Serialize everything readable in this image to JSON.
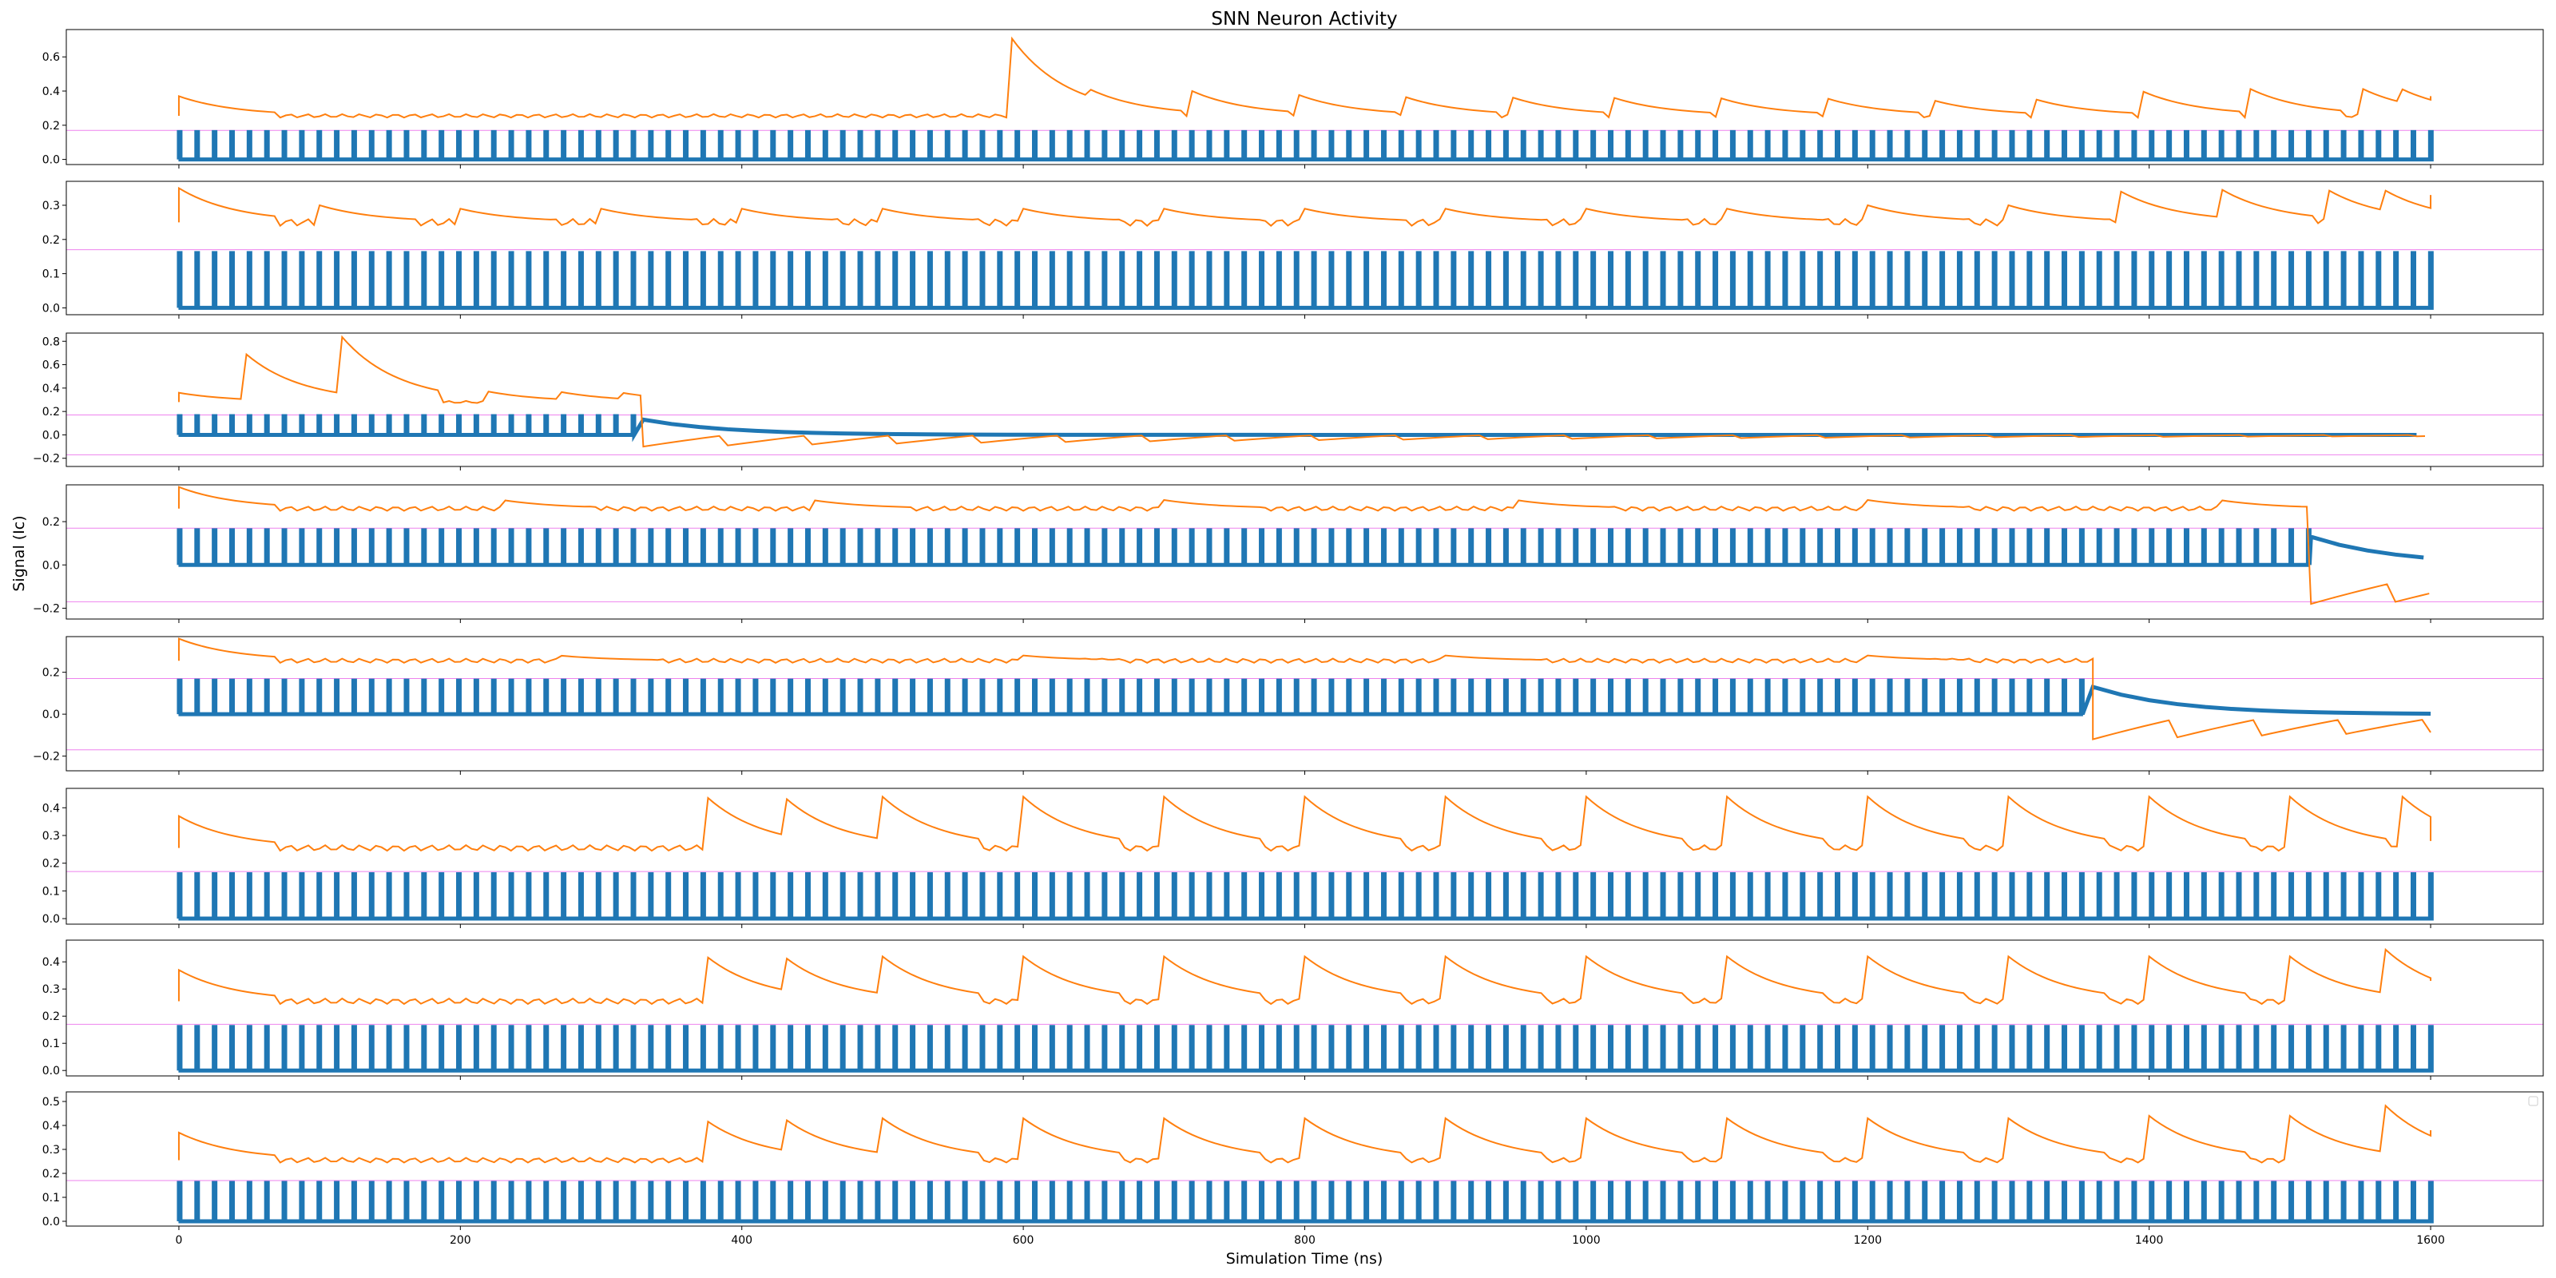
{
  "chart_data": {
    "type": "line",
    "title": "SNN Neuron Activity",
    "xlabel": "Simulation Time (ns)",
    "ylabel": "Signal (Ic)",
    "xlim": [
      -80,
      1680
    ],
    "x_ticks": [
      0,
      200,
      400,
      600,
      800,
      1000,
      1200,
      1400,
      1600
    ],
    "grid": false,
    "legend": "top-right (empty)",
    "colors": {
      "spike": "#1f77b4",
      "membrane": "#ff7f0e",
      "threshold": "#ee82ee",
      "frame": "#000000"
    },
    "spike_period_ns": 12.4,
    "spike_height": 0.16,
    "threshold_abs": 0.17,
    "panels": [
      {
        "ylim": [
          -0.03,
          0.76
        ],
        "y_ticks": [
          0.0,
          0.2,
          0.4,
          0.6
        ],
        "y_tick_labels": [
          "0.0",
          "0.2",
          "0.4",
          "0.6"
        ],
        "threshold_neg": false,
        "spikes_stop_ns": null,
        "membrane_baseline": 0.255,
        "membrane_peaks": [
          [
            0,
            0.37
          ],
          [
            590,
            0.73
          ],
          [
            645,
            0.42
          ],
          [
            720,
            0.4
          ],
          [
            795,
            0.38
          ],
          [
            870,
            0.37
          ],
          [
            945,
            0.37
          ],
          [
            1020,
            0.36
          ],
          [
            1095,
            0.36
          ],
          [
            1170,
            0.36
          ],
          [
            1245,
            0.35
          ],
          [
            1320,
            0.35
          ],
          [
            1395,
            0.4
          ],
          [
            1470,
            0.42
          ],
          [
            1550,
            0.42
          ],
          [
            1580,
            0.41
          ]
        ],
        "membrane_end": 0.37
      },
      {
        "ylim": [
          -0.02,
          0.37
        ],
        "y_ticks": [
          0.0,
          0.1,
          0.2,
          0.3
        ],
        "y_tick_labels": [
          "0.0",
          "0.1",
          "0.2",
          "0.3"
        ],
        "threshold_neg": false,
        "spikes_stop_ns": null,
        "membrane_baseline": 0.25,
        "membrane_peaks": [
          [
            0,
            0.35
          ],
          [
            100,
            0.3
          ],
          [
            200,
            0.29
          ],
          [
            300,
            0.29
          ],
          [
            400,
            0.29
          ],
          [
            500,
            0.29
          ],
          [
            600,
            0.29
          ],
          [
            700,
            0.29
          ],
          [
            800,
            0.29
          ],
          [
            900,
            0.29
          ],
          [
            1000,
            0.29
          ],
          [
            1100,
            0.29
          ],
          [
            1200,
            0.3
          ],
          [
            1300,
            0.3
          ],
          [
            1380,
            0.34
          ],
          [
            1450,
            0.35
          ],
          [
            1525,
            0.35
          ],
          [
            1565,
            0.35
          ]
        ],
        "membrane_end": 0.33
      },
      {
        "ylim": [
          -0.27,
          0.87
        ],
        "y_ticks": [
          -0.2,
          0.0,
          0.2,
          0.4,
          0.6,
          0.8
        ],
        "y_tick_labels": [
          "−0.2",
          "0.0",
          "0.2",
          "0.4",
          "0.6",
          "0.8"
        ],
        "threshold_neg": true,
        "spikes_stop_ns": 330,
        "membrane_baseline": 0.28,
        "membrane_peaks": [
          [
            0,
            0.36
          ],
          [
            45,
            0.72
          ],
          [
            115,
            0.85
          ],
          [
            220,
            0.37
          ],
          [
            270,
            0.37
          ],
          [
            315,
            0.36
          ]
        ],
        "membrane_end": 0.0
      },
      {
        "ylim": [
          -0.25,
          0.37
        ],
        "y_ticks": [
          -0.2,
          0.0,
          0.2
        ],
        "y_tick_labels": [
          "−0.2",
          "0.0",
          "0.2"
        ],
        "threshold_neg": true,
        "spikes_stop_ns": 1515,
        "membrane_baseline": 0.26,
        "membrane_peaks": [
          [
            0,
            0.36
          ],
          [
            230,
            0.3
          ],
          [
            450,
            0.3
          ],
          [
            700,
            0.3
          ],
          [
            950,
            0.3
          ],
          [
            1200,
            0.3
          ],
          [
            1450,
            0.3
          ]
        ],
        "membrane_end": -0.08
      },
      {
        "ylim": [
          -0.27,
          0.37
        ],
        "y_ticks": [
          -0.2,
          0.0,
          0.2
        ],
        "y_tick_labels": [
          "−0.2",
          "0.0",
          "0.2"
        ],
        "threshold_neg": true,
        "spikes_stop_ns": 1360,
        "membrane_baseline": 0.255,
        "membrane_peaks": [
          [
            0,
            0.36
          ],
          [
            270,
            0.28
          ],
          [
            600,
            0.28
          ],
          [
            900,
            0.28
          ],
          [
            1200,
            0.28
          ]
        ],
        "membrane_end": -0.02
      },
      {
        "ylim": [
          -0.02,
          0.47
        ],
        "y_ticks": [
          0.0,
          0.1,
          0.2,
          0.3,
          0.4
        ],
        "y_tick_labels": [
          "0.0",
          "0.1",
          "0.2",
          "0.3",
          "0.4"
        ],
        "threshold_neg": false,
        "spikes_stop_ns": null,
        "membrane_baseline": 0.255,
        "membrane_peaks": [
          [
            0,
            0.37
          ],
          [
            375,
            0.44
          ],
          [
            430,
            0.44
          ],
          [
            500,
            0.44
          ],
          [
            600,
            0.44
          ],
          [
            700,
            0.44
          ],
          [
            800,
            0.44
          ],
          [
            900,
            0.44
          ],
          [
            1000,
            0.44
          ],
          [
            1100,
            0.44
          ],
          [
            1200,
            0.44
          ],
          [
            1300,
            0.44
          ],
          [
            1400,
            0.44
          ],
          [
            1500,
            0.44
          ],
          [
            1580,
            0.44
          ]
        ],
        "membrane_end": 0.28
      },
      {
        "ylim": [
          -0.02,
          0.48
        ],
        "y_ticks": [
          0.0,
          0.1,
          0.2,
          0.3,
          0.4
        ],
        "y_tick_labels": [
          "0.0",
          "0.1",
          "0.2",
          "0.3",
          "0.4"
        ],
        "threshold_neg": false,
        "spikes_stop_ns": null,
        "membrane_baseline": 0.255,
        "membrane_peaks": [
          [
            0,
            0.37
          ],
          [
            375,
            0.42
          ],
          [
            430,
            0.42
          ],
          [
            500,
            0.42
          ],
          [
            600,
            0.42
          ],
          [
            700,
            0.42
          ],
          [
            800,
            0.42
          ],
          [
            900,
            0.42
          ],
          [
            1000,
            0.42
          ],
          [
            1100,
            0.42
          ],
          [
            1200,
            0.42
          ],
          [
            1300,
            0.42
          ],
          [
            1400,
            0.42
          ],
          [
            1500,
            0.42
          ],
          [
            1565,
            0.46
          ]
        ],
        "membrane_end": 0.33
      },
      {
        "ylim": [
          -0.02,
          0.54
        ],
        "y_ticks": [
          0.0,
          0.1,
          0.2,
          0.3,
          0.4,
          0.5
        ],
        "y_tick_labels": [
          "0.0",
          "0.1",
          "0.2",
          "0.3",
          "0.4",
          "0.5"
        ],
        "threshold_neg": false,
        "spikes_stop_ns": null,
        "membrane_baseline": 0.255,
        "membrane_peaks": [
          [
            0,
            0.37
          ],
          [
            375,
            0.42
          ],
          [
            430,
            0.43
          ],
          [
            500,
            0.43
          ],
          [
            600,
            0.43
          ],
          [
            700,
            0.43
          ],
          [
            800,
            0.43
          ],
          [
            900,
            0.43
          ],
          [
            1000,
            0.43
          ],
          [
            1100,
            0.43
          ],
          [
            1200,
            0.43
          ],
          [
            1300,
            0.43
          ],
          [
            1400,
            0.44
          ],
          [
            1500,
            0.44
          ],
          [
            1565,
            0.5
          ]
        ],
        "membrane_end": 0.38
      }
    ]
  }
}
